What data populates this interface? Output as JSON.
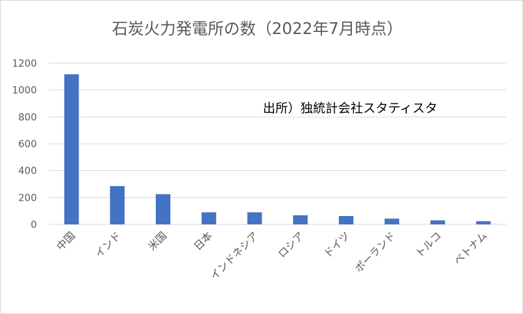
{
  "chart_data": {
    "type": "bar",
    "title": "石炭火力発電所の数（2022年7月時点）",
    "annotation": "出所）独統計会社スタティスタ",
    "categories": [
      "中国",
      "インド",
      "米国",
      "日本",
      "インドネシア",
      "ロシア",
      "ドイツ",
      "ポーランド",
      "トルコ",
      "ベトナム"
    ],
    "values": [
      1118,
      285,
      225,
      90,
      90,
      68,
      62,
      43,
      30,
      24
    ],
    "ylim": [
      0,
      1200
    ],
    "yticks": [
      0,
      200,
      400,
      600,
      800,
      1000,
      1200
    ],
    "grid": true,
    "legend": "none",
    "bar_color": "#4472c4",
    "grid_color": "#d9d9d9"
  }
}
